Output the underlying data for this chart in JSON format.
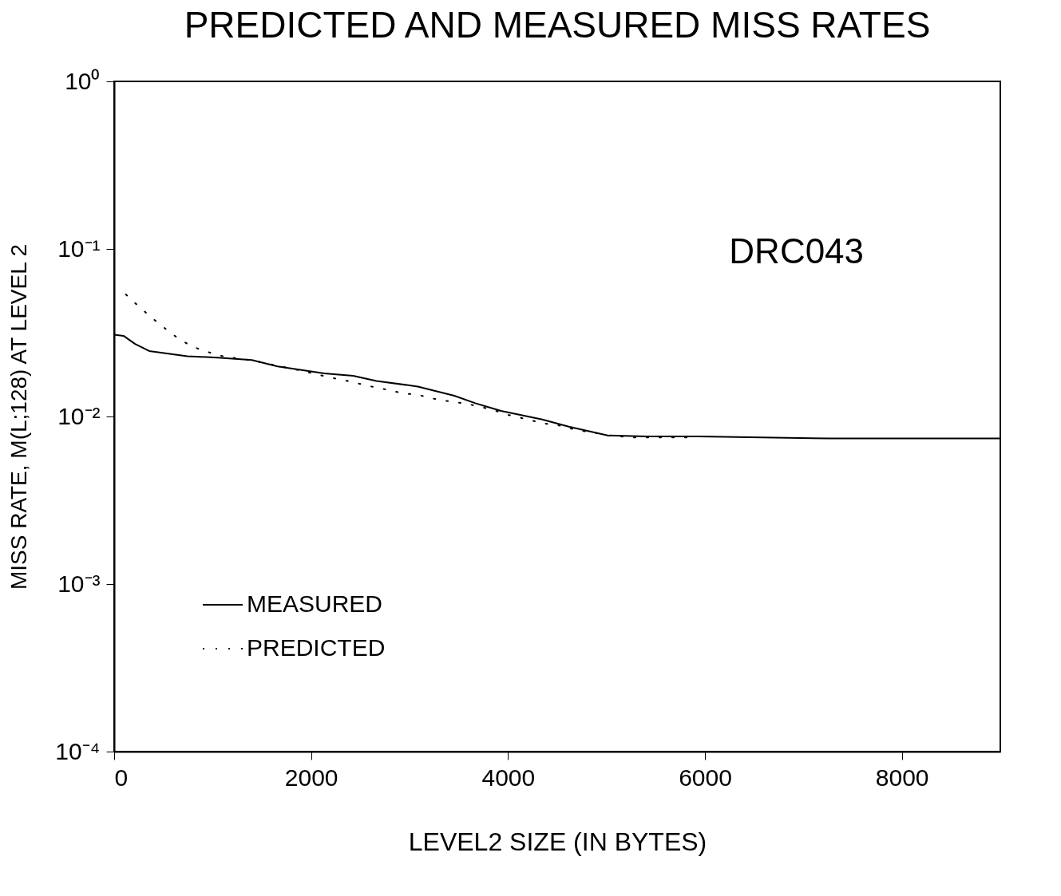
{
  "chart_data": {
    "type": "line",
    "title": "PREDICTED AND MEASURED MISS RATES",
    "xlabel": "LEVEL2 SIZE (IN BYTES)",
    "ylabel": "MISS RATE, M(L;128) AT LEVEL 2",
    "annotations": [
      "DRC043"
    ],
    "log": "y",
    "xlim": [
      0,
      9000
    ],
    "xticks": [
      0,
      2000,
      4000,
      6000,
      8000
    ],
    "ylim": [
      0.0001,
      1
    ],
    "yticks": [
      {
        "value": 0.0001,
        "label": "10⁻⁴"
      },
      {
        "value": 0.001,
        "label": "10⁻³"
      },
      {
        "value": 0.01,
        "label": "10⁻²"
      },
      {
        "value": 0.1,
        "label": "10⁻¹"
      },
      {
        "value": 1,
        "label": "10⁰"
      }
    ],
    "grid": false,
    "legend": "bottom left",
    "series": [
      {
        "name": "MEASURED",
        "color": "#000000",
        "line_style": "solid",
        "x": [
          0,
          95,
          213,
          356,
          743,
          1083,
          1399,
          1660,
          2134,
          2427,
          2664,
          3083,
          3455,
          3668,
          3929,
          4348,
          4617,
          5012,
          5407,
          5929,
          7249,
          9000
        ],
        "values": [
          0.0308,
          0.0303,
          0.0271,
          0.0246,
          0.0229,
          0.0224,
          0.0217,
          0.0199,
          0.0181,
          0.0175,
          0.0163,
          0.0151,
          0.0133,
          0.012,
          0.0108,
          0.0096,
          0.0087,
          0.0077,
          0.0076,
          0.0076,
          0.0074,
          0.0074
        ]
      },
      {
        "name": "PREDICTED",
        "color": "#000000",
        "line_style": "dotted",
        "x": [
          119,
          237,
          372,
          506,
          632,
          759,
          885,
          1020,
          1138,
          1265,
          1399,
          1913,
          2047,
          2174,
          2300,
          2435,
          2561,
          2688,
          2822,
          2957,
          3083,
          3209,
          3328,
          3455,
          3589,
          3715,
          3842,
          3976,
          4103,
          4229,
          4364,
          4498,
          4625,
          4751,
          4877,
          5012,
          5138,
          5273,
          5399,
          5526,
          5652,
          5779,
          5905
        ],
        "values": [
          0.0535,
          0.0461,
          0.0393,
          0.0339,
          0.0298,
          0.0268,
          0.0249,
          0.0236,
          0.0226,
          0.0222,
          0.0216,
          0.0187,
          0.0179,
          0.0172,
          0.0166,
          0.016,
          0.0153,
          0.0148,
          0.0142,
          0.0137,
          0.0135,
          0.0129,
          0.0125,
          0.0122,
          0.0119,
          0.0114,
          0.011,
          0.0103,
          0.0099,
          0.0095,
          0.0091,
          0.0089,
          0.0085,
          0.0082,
          0.008,
          0.0077,
          0.0076,
          0.0075,
          0.0075,
          0.0075,
          0.0075,
          0.0075,
          0.0075
        ]
      }
    ]
  }
}
